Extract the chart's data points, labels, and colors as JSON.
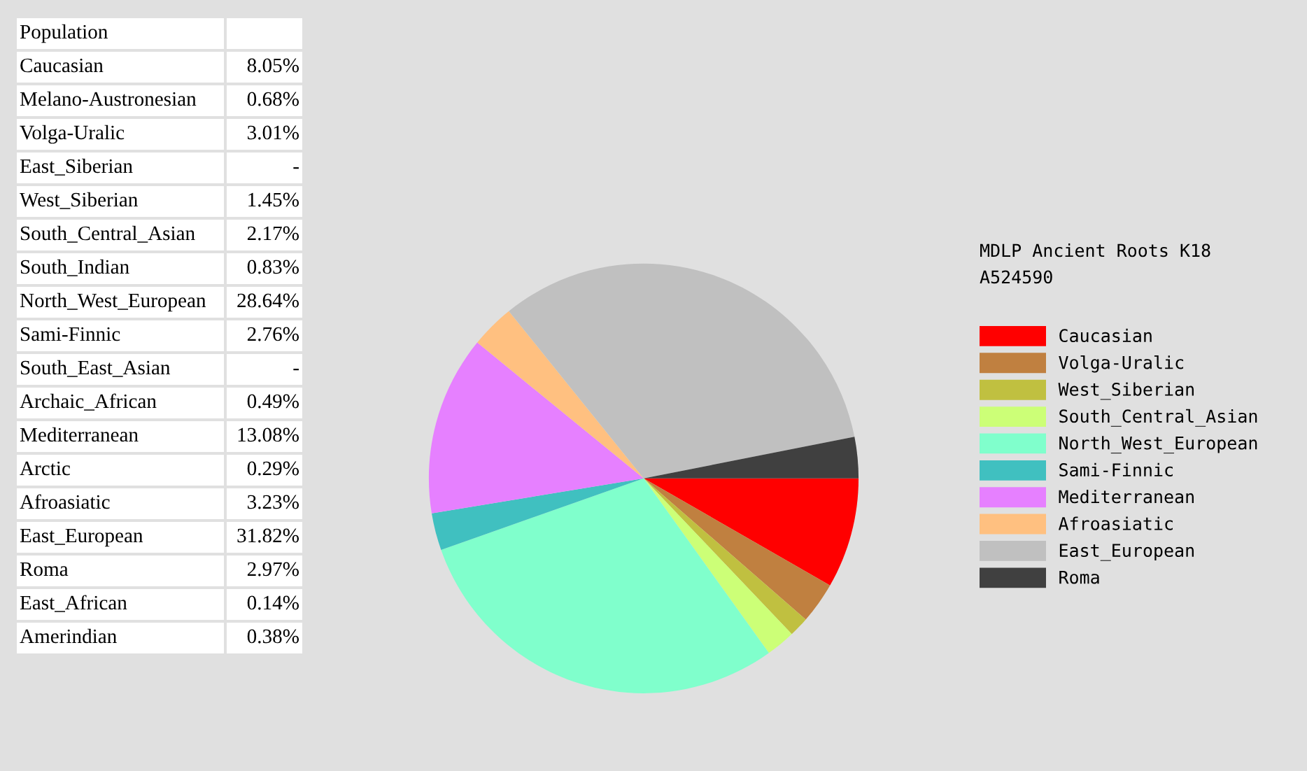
{
  "chart_data": [
    {
      "type": "other",
      "title": "Population",
      "categories": [
        "Caucasian",
        "Melano-Austronesian",
        "Volga-Uralic",
        "East_Siberian",
        "West_Siberian",
        "South_Central_Asian",
        "South_Indian",
        "North_West_European",
        "Sami-Finnic",
        "South_East_Asian",
        "Archaic_African",
        "Mediterranean",
        "Arctic",
        "Afroasiatic",
        "East_European",
        "Roma",
        "East_African",
        "Amerindian"
      ],
      "value_labels": [
        "8.05%",
        "0.68%",
        "3.01%",
        "-",
        "1.45%",
        "2.17%",
        "0.83%",
        "28.64%",
        "2.76%",
        "-",
        "0.49%",
        "13.08%",
        "0.29%",
        "3.23%",
        "31.82%",
        "2.97%",
        "0.14%",
        "0.38%"
      ]
    },
    {
      "type": "pie",
      "title": "MDLP Ancient Roots K18",
      "subtitle": "A524590",
      "legend": "right",
      "categories": [
        "Caucasian",
        "Volga-Uralic",
        "West_Siberian",
        "South_Central_Asian",
        "North_West_European",
        "Sami-Finnic",
        "Mediterranean",
        "Afroasiatic",
        "East_European",
        "Roma"
      ],
      "values": [
        8.3,
        3.1,
        1.5,
        2.2,
        29.5,
        2.8,
        13.5,
        3.3,
        32.7,
        3.1
      ],
      "colors": [
        "#ff0000",
        "#c08040",
        "#c0c040",
        "#ccff77",
        "#80ffcc",
        "#40c0c0",
        "#e680ff",
        "#ffc080",
        "#c0c0c0",
        "#404040"
      ]
    }
  ]
}
